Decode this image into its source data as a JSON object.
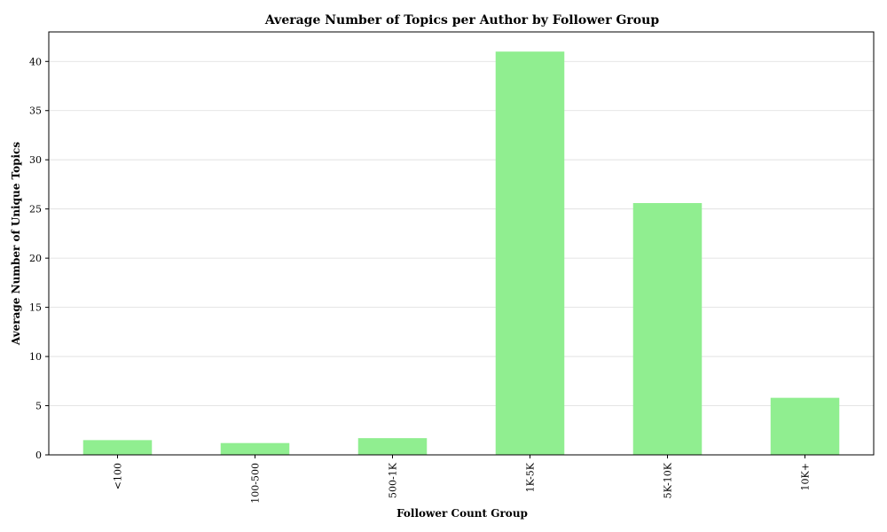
{
  "chart_data": {
    "type": "bar",
    "title": "Average Number of Topics per Author by Follower Group",
    "xlabel": "Follower Count Group",
    "ylabel": "Average Number of Unique Topics",
    "categories": [
      "<100",
      "100-500",
      "500-1K",
      "1K-5K",
      "5K-10K",
      "10K+"
    ],
    "values": [
      1.5,
      1.2,
      1.7,
      41.0,
      25.6,
      5.8
    ],
    "ylim": [
      0,
      43
    ],
    "yticks": [
      0,
      5,
      10,
      15,
      20,
      25,
      30,
      35,
      40
    ],
    "grid": "horizontal",
    "bar_color": "#90ee90",
    "legend": "none"
  }
}
